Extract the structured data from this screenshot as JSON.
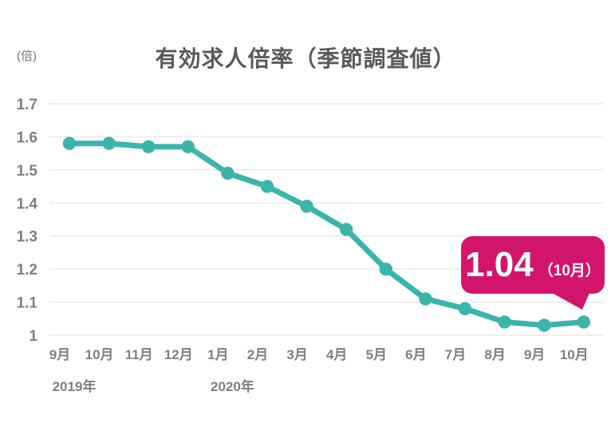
{
  "title": "有効求人倍率（季節調査値）",
  "unit_label": "(倍)",
  "annotation": {
    "value": "1.04",
    "suffix": "（10月）"
  },
  "colors": {
    "line": "#3CB5A9",
    "badge": "#D3146B",
    "title": "#5A5A5A",
    "tick": "#7F7F7F",
    "grid": "#E8E8E8",
    "badge_text": "#FFFFFF"
  },
  "chart_data": {
    "type": "line",
    "title": "有効求人倍率（季節調査値）",
    "ylabel": "(倍)",
    "categories": [
      "9月",
      "10月",
      "11月",
      "12月",
      "1月",
      "2月",
      "3月",
      "4月",
      "5月",
      "6月",
      "7月",
      "8月",
      "9月",
      "10月"
    ],
    "values": [
      1.58,
      1.58,
      1.57,
      1.57,
      1.49,
      1.45,
      1.39,
      1.32,
      1.2,
      1.11,
      1.08,
      1.04,
      1.03,
      1.04
    ],
    "year_labels": [
      {
        "text": "2019年",
        "index": 0
      },
      {
        "text": "2020年",
        "index": 4
      }
    ],
    "ylim": [
      1.0,
      1.7
    ],
    "yticks": [
      "1.7",
      "1.6",
      "1.5",
      "1.4",
      "1.3",
      "1.2",
      "1.1",
      "1"
    ],
    "grid": true,
    "legend": "none",
    "annotation_target": {
      "category_index": 13,
      "value": 1.04
    }
  }
}
